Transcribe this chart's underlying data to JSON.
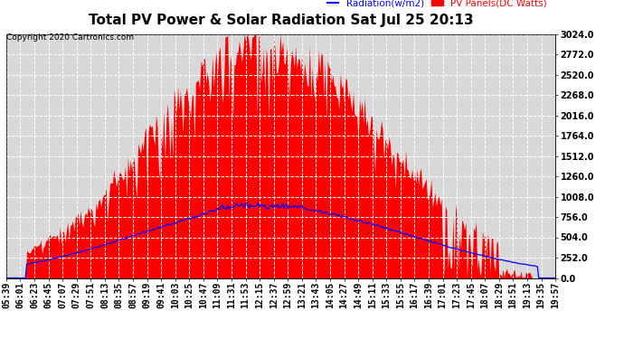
{
  "title": "Total PV Power & Solar Radiation Sat Jul 25 20:13",
  "copyright": "Copyright 2020 Cartronics.com",
  "legend_radiation": "Radiation(w/m2)",
  "legend_pv": "PV Panels(DC Watts)",
  "ylabel_right_ticks": [
    0.0,
    252.0,
    504.0,
    756.0,
    1008.0,
    1260.0,
    1512.0,
    1764.0,
    2016.0,
    2268.0,
    2520.0,
    2772.0,
    3024.0
  ],
  "ymax": 3024.0,
  "ymin": 0.0,
  "bg_color": "#ffffff",
  "plot_bg_color": "#d8d8d8",
  "grid_color": "#ffffff",
  "pv_fill_color": "#ff0000",
  "radiation_line_color": "#0000ff",
  "title_fontsize": 11,
  "tick_fontsize": 7,
  "copyright_fontsize": 6.5
}
